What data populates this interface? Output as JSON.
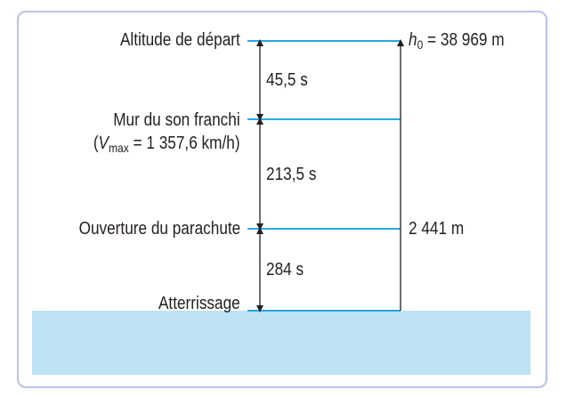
{
  "colors": {
    "border": "#b9c3e6",
    "line": "#27a9e1",
    "ground": "#bde3f5",
    "text": "#231f20"
  },
  "labels": {
    "start": "Altitude de départ",
    "sound_barrier": "Mur du son franchi",
    "vmax_var": "V",
    "vmax_sub": "max",
    "vmax_value": " = 1 357,6 km/h)",
    "parachute": "Ouverture du parachute",
    "landing": "Atterrissage"
  },
  "durations": {
    "d1": "45,5 s",
    "d2": "213,5 s",
    "d3": "284 s"
  },
  "altitudes": {
    "h0_var": "h",
    "h0_sub": "0",
    "h0_value": " = 38 969 m",
    "parachute_alt": "2 441 m"
  }
}
